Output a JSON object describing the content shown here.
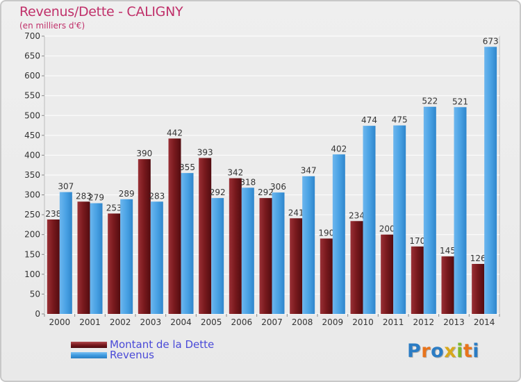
{
  "chart_data": {
    "type": "bar",
    "title": "Revenus/Dette - CALIGNY",
    "subtitle": "(en milliers d'€)",
    "categories": [
      "2000",
      "2001",
      "2002",
      "2003",
      "2004",
      "2005",
      "2006",
      "2007",
      "2008",
      "2009",
      "2010",
      "2011",
      "2012",
      "2013",
      "2014"
    ],
    "series": [
      {
        "name": "Montant de la Dette",
        "color": "#7a1a1e",
        "values": [
          238,
          283,
          253,
          390,
          442,
          393,
          342,
          292,
          241,
          190,
          234,
          200,
          170,
          145,
          126
        ],
        "labels": [
          "238",
          "283",
          "253",
          "390",
          "442",
          "393",
          "342",
          "292",
          "241",
          "190",
          "234",
          "200",
          "170",
          "145",
          "126"
        ]
      },
      {
        "name": "Revenus",
        "color": "#3f9be0",
        "values": [
          307,
          279,
          289,
          283,
          355,
          292,
          318,
          306,
          347,
          402,
          474,
          475,
          522,
          521,
          673
        ],
        "labels": [
          "307",
          "279",
          "289",
          "283",
          "355",
          "292",
          "318",
          "306",
          "347",
          "402",
          "474",
          "475",
          "522",
          "521",
          "673"
        ]
      }
    ],
    "ylim": [
      0,
      700
    ],
    "yticks": [
      0,
      50,
      100,
      150,
      200,
      250,
      300,
      350,
      400,
      450,
      500,
      550,
      600,
      650,
      700
    ],
    "ytick_labels": [
      "0",
      "50",
      "100",
      "150",
      "200",
      "250",
      "300",
      "350",
      "400",
      "450",
      "500",
      "550",
      "600",
      "650",
      "700"
    ],
    "grid": true,
    "legend_position": "bottom-left"
  },
  "legend": {
    "debt_label": "Montant de la Dette",
    "revenue_label": "Revenus"
  },
  "logo": {
    "text": "Proxiti",
    "letters": [
      "P",
      "r",
      "o",
      "x",
      "i",
      "t",
      "i"
    ],
    "colors": [
      "#2b7cc4",
      "#e8741c",
      "#2b7cc4",
      "#d8a81c",
      "#7cb82c",
      "#e8741c",
      "#2b7cc4"
    ]
  }
}
